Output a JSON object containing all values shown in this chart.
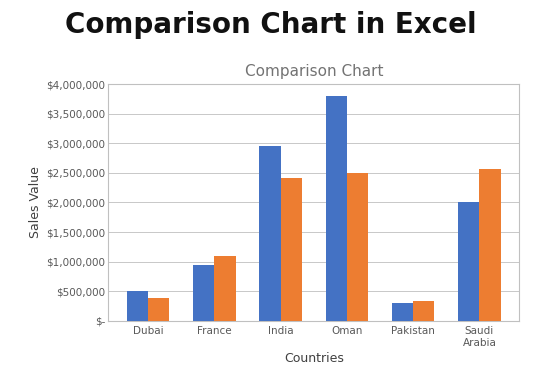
{
  "title_main": "Comparison Chart in Excel",
  "chart_title": "Comparison Chart",
  "xlabel": "Countries",
  "ylabel": "Sales Value",
  "categories": [
    "Dubai",
    "France",
    "India",
    "Oman",
    "Pakistan",
    "Saudi\nArabia"
  ],
  "series1": [
    500000,
    950000,
    2950000,
    3800000,
    300000,
    2000000
  ],
  "series2": [
    380000,
    1100000,
    2420000,
    2500000,
    330000,
    2570000
  ],
  "color1": "#4472C4",
  "color2": "#ED7D31",
  "ylim": [
    0,
    4000000
  ],
  "yticks": [
    0,
    500000,
    1000000,
    1500000,
    2000000,
    2500000,
    3000000,
    3500000,
    4000000
  ],
  "ytick_labels": [
    "$-",
    "$500,000",
    "$1,000,000",
    "$1,500,000",
    "$2,000,000",
    "$2,500,000",
    "$3,000,000",
    "$3,500,000",
    "$4,000,000"
  ],
  "background_color": "#ffffff",
  "chart_bg_color": "#ffffff",
  "grid_color": "#c8c8c8",
  "title_fontsize": 20,
  "chart_title_fontsize": 11,
  "axis_label_fontsize": 9,
  "tick_fontsize": 7.5,
  "bar_width": 0.32
}
